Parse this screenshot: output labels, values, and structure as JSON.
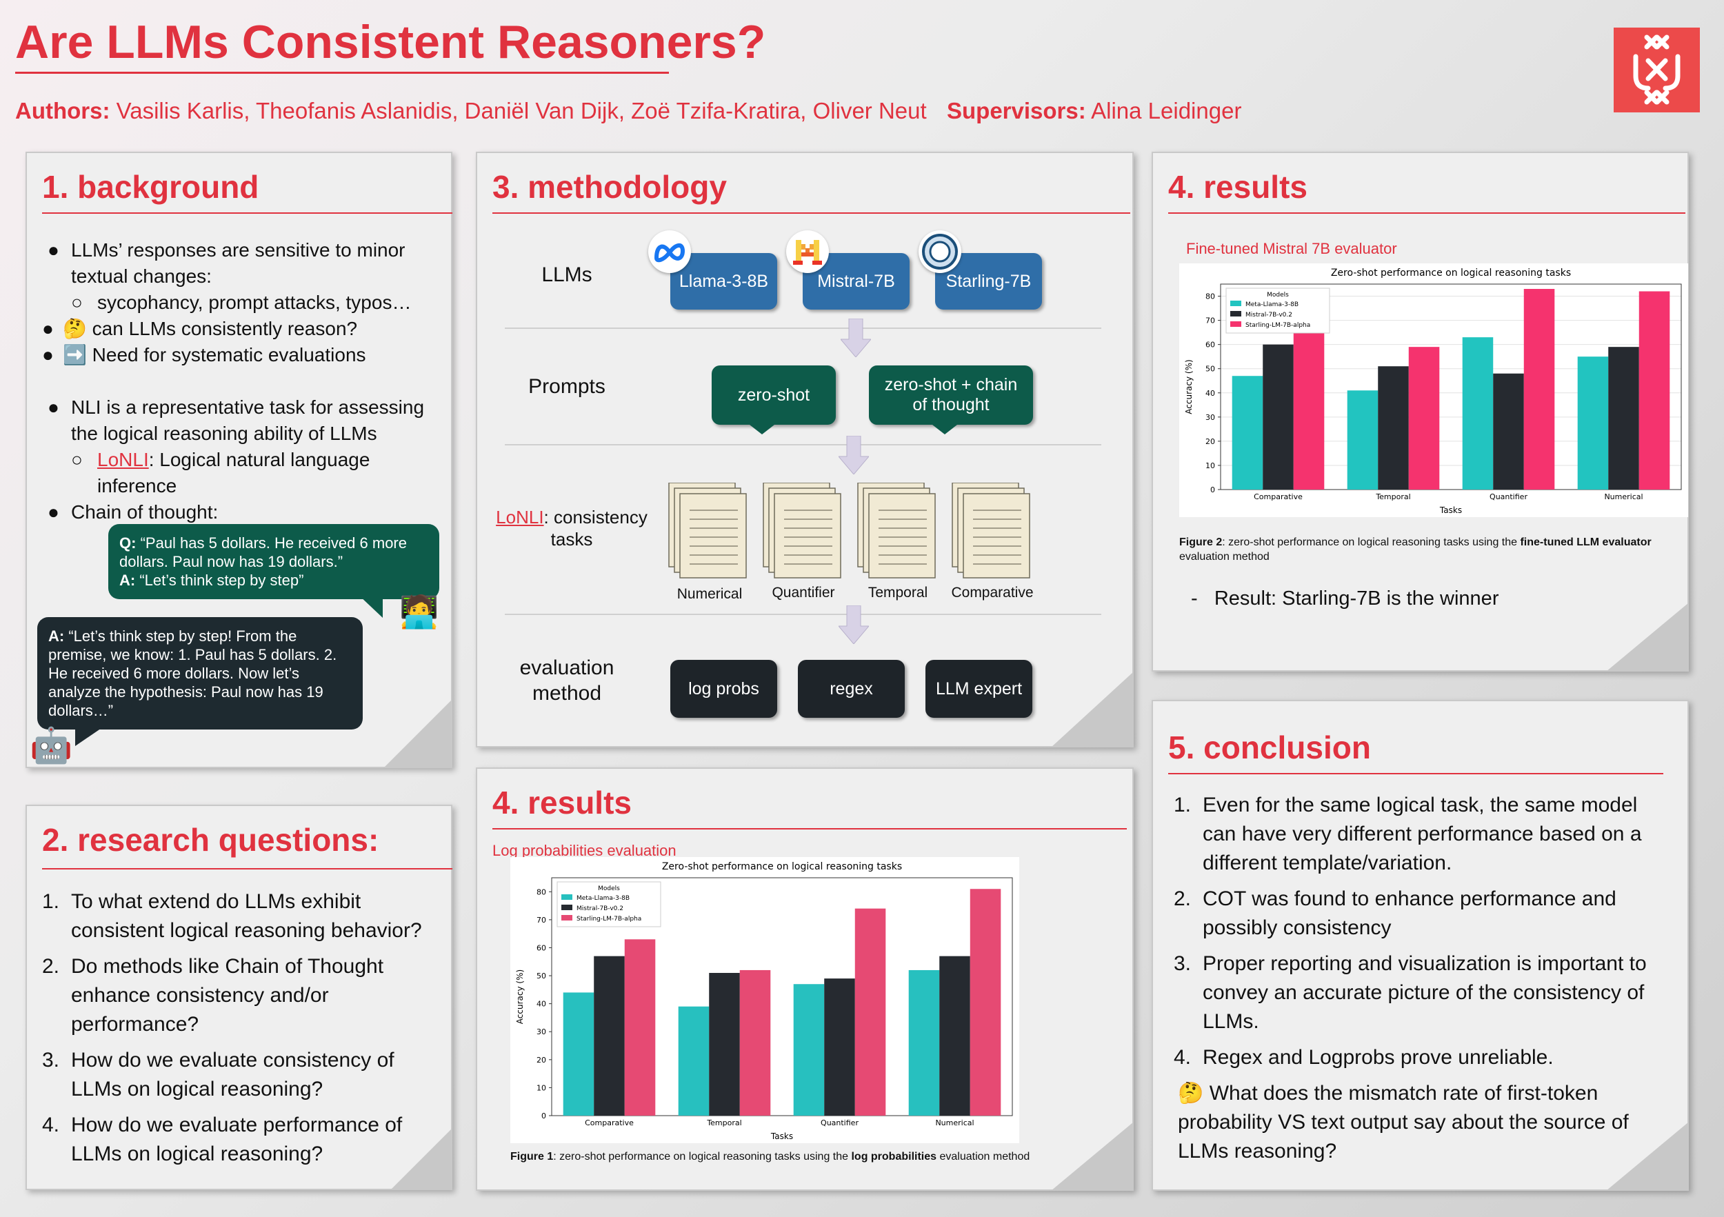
{
  "header": {
    "title": "Are LLMs Consistent Reasoners?",
    "authors_label": "Authors:",
    "authors": "Vasilis Karlis, Theofanis Aslanidis, Daniël Van Dijk, Zoë Tzifa-Kratira, Oliver Neut",
    "supervisors_label": "Supervisors:",
    "supervisors": "Alina Leidinger",
    "logo_icon": "uva-logo-icon",
    "accent": "#e0323f"
  },
  "background": {
    "title": "1. background",
    "b1": "LLMs’ responses are sensitive to minor textual changes:",
    "b1_sub": "sycophancy, prompt attacks, typos…",
    "b2_emoji": "🤔",
    "b2": "can LLMs consistently reason?",
    "b3_emoji": "➡️",
    "b3": "Need for systematic evaluations",
    "b4": "NLI is a representative task for assessing the logical reasoning ability of LLMs",
    "b4_sub_link": "LoNLI",
    "b4_sub": ": Logical natural language inference",
    "b5": "Chain of thought:",
    "q_label": "Q:",
    "q_text": "“Paul has 5 dollars. He received 6 more dollars. Paul now has 19 dollars.”",
    "a1_label": "A:",
    "a1_text": "“Let’s think step by step”",
    "a2_label": "A:",
    "a2_text": "“Let’s think step by step! From the premise, we know: 1. Paul has 5 dollars. 2. He received 6 more dollars. Now let’s analyze the hypothesis: Paul now has 19 dollars…”",
    "person_emoji": "🧑‍💻",
    "robot_emoji": "🤖"
  },
  "questions": {
    "title": "2. research questions:",
    "items": [
      "To what extend do LLMs exhibit consistent logical reasoning behavior?",
      "Do methods like Chain of Thought enhance consistency and/or performance?",
      "How do we evaluate consistency of LLMs on logical reasoning?",
      "How do we evaluate performance of LLMs on logical reasoning?"
    ]
  },
  "methodology": {
    "title": "3. methodology",
    "llms_label": "LLMs",
    "llms": [
      "Llama-3-8B",
      "Mistral-7B",
      "Starling-7B"
    ],
    "llm_icons": [
      "meta-logo-icon",
      "mistral-logo-icon",
      "starling-logo-icon"
    ],
    "prompts_label": "Prompts",
    "prompts": [
      "zero-shot",
      "zero-shot + chain of thought"
    ],
    "tasks_link": "LoNLI",
    "tasks_label": ": consistency tasks",
    "tasks": [
      "Numerical",
      "Quantifier",
      "Temporal",
      "Comparative"
    ],
    "eval_label": "evaluation method",
    "eval_methods": [
      "log probs",
      "regex",
      "LLM expert"
    ]
  },
  "results_top": {
    "title": "4. results",
    "subtitle": "Fine-tuned Mistral 7B evaluator",
    "caption_bold1": "Figure 2",
    "caption1": ": zero-shot performance on logical reasoning tasks using the ",
    "caption_bold2": "fine-tuned LLM evaluator",
    "caption2": " evaluation method",
    "result_dash": "-",
    "result": "Result: Starling-7B is the winner"
  },
  "results_bottom": {
    "title": "4. results",
    "subtitle": "Log probabilities evaluation",
    "caption_bold1": "Figure 1",
    "caption1": ": zero-shot performance on logical reasoning tasks using the ",
    "caption_bold2": "log probabilities",
    "caption2": " evaluation method"
  },
  "conclusion": {
    "title": "5. conclusion",
    "items": [
      "Even for the same logical task, the same model can have very different performance based on a different template/variation.",
      "COT was found to enhance performance and possibly consistency",
      "Proper reporting and visualization is important to convey an accurate picture of the consistency of LLMs.",
      "Regex and Logprobs prove unreliable."
    ],
    "question_emoji": "🤔",
    "question": "What does the mismatch rate of first-token probability VS text output say about the source of LLMs reasoning?"
  },
  "chart_data": [
    {
      "type": "bar",
      "title": "Zero-shot performance on logical reasoning tasks",
      "xlabel": "Tasks",
      "ylabel": "Accuracy (%)",
      "ylim": [
        0,
        85
      ],
      "yticks": [
        0,
        10,
        20,
        30,
        40,
        50,
        60,
        70,
        80
      ],
      "legend_title": "Models",
      "legend_position": "top-left",
      "grid": true,
      "categories": [
        "Comparative",
        "Temporal",
        "Quantifier",
        "Numerical"
      ],
      "series": [
        {
          "name": "Meta-Llama-3-8B",
          "color": "#22c4c0",
          "values": [
            47,
            41,
            63,
            55
          ]
        },
        {
          "name": "Mistral-7B-v0.2",
          "color": "#262a30",
          "values": [
            60,
            51,
            48,
            59
          ]
        },
        {
          "name": "Starling-LM-7B-alpha",
          "color": "#f5336e",
          "values": [
            65,
            59,
            83,
            82
          ]
        }
      ]
    },
    {
      "type": "bar",
      "title": "Zero-shot performance on logical reasoning tasks",
      "xlabel": "Tasks",
      "ylabel": "Accuracy (%)",
      "ylim": [
        0,
        85
      ],
      "yticks": [
        0,
        10,
        20,
        30,
        40,
        50,
        60,
        70,
        80
      ],
      "legend_title": "Models",
      "legend_position": "top-left",
      "grid": false,
      "categories": [
        "Comparative",
        "Temporal",
        "Quantifier",
        "Numerical"
      ],
      "series": [
        {
          "name": "Meta-Llama-3-8B",
          "color": "#27c0bf",
          "values": [
            44,
            39,
            47,
            52
          ]
        },
        {
          "name": "Mistral-7B-v0.2",
          "color": "#262a30",
          "values": [
            57,
            51,
            49,
            57
          ]
        },
        {
          "name": "Starling-LM-7B-alpha",
          "color": "#e64a73",
          "values": [
            63,
            52,
            74,
            81
          ]
        }
      ]
    }
  ]
}
